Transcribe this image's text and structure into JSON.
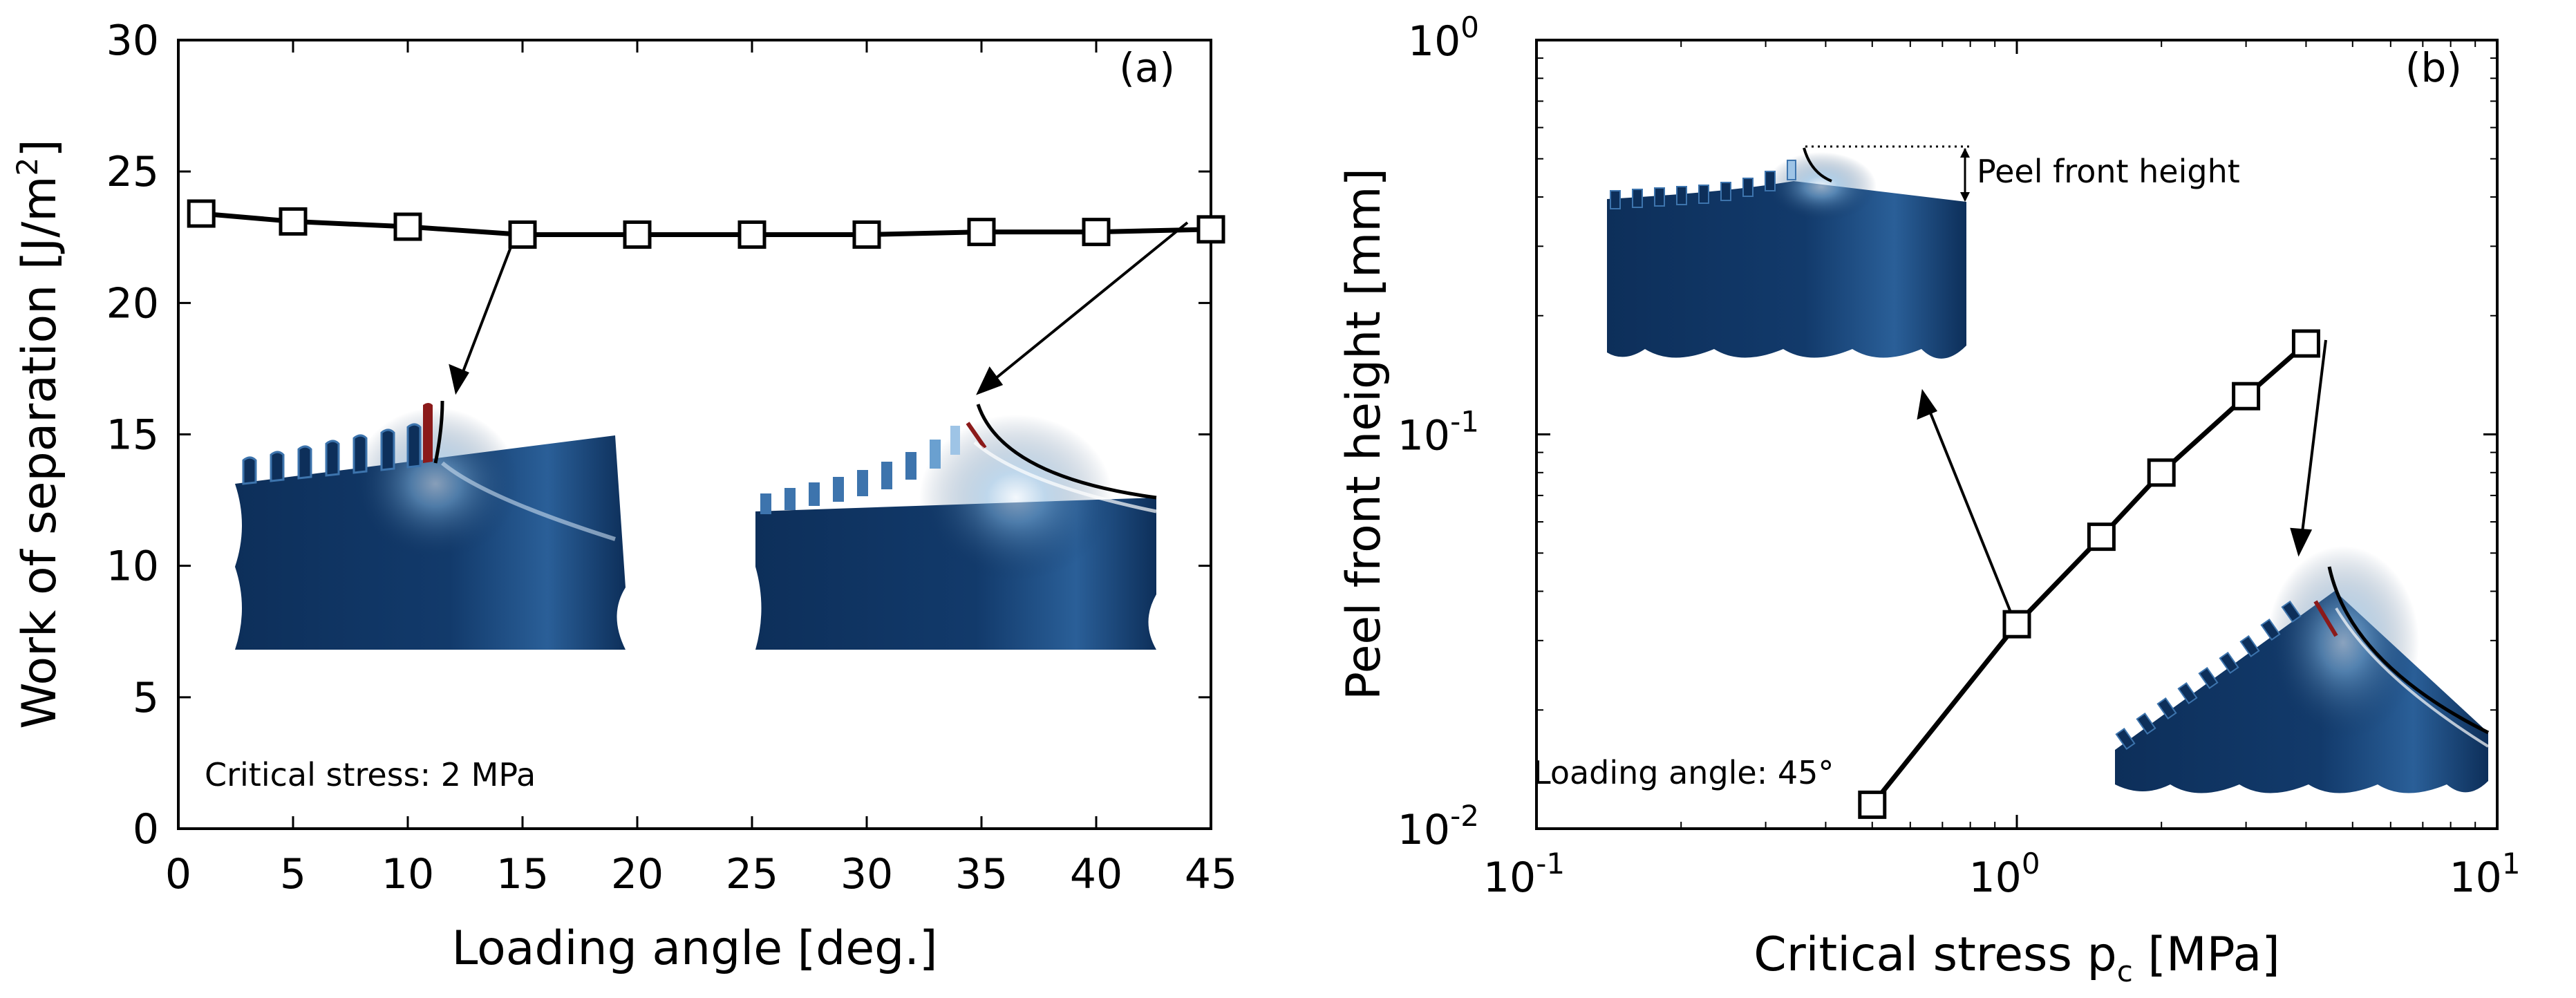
{
  "chart_data": [
    {
      "type": "line",
      "panel_label": "(a)",
      "xlabel": "Loading angle [deg.]",
      "ylabel_main": "Work of separation  [J/m",
      "ylabel_sup": "2",
      "ylabel_close": "]",
      "xlim": [
        0,
        45
      ],
      "ylim": [
        0,
        30
      ],
      "xticks": [
        0,
        5,
        10,
        15,
        20,
        25,
        30,
        35,
        40,
        45
      ],
      "yticks": [
        0,
        5,
        10,
        15,
        20,
        25,
        30
      ],
      "grid": false,
      "series": [
        {
          "name": "Work of separation",
          "marker": "square",
          "x": [
            1,
            5,
            10,
            15,
            20,
            25,
            30,
            35,
            40,
            45
          ],
          "y": [
            23.4,
            23.1,
            22.9,
            22.6,
            22.6,
            22.6,
            22.6,
            22.7,
            22.7,
            22.8
          ]
        }
      ],
      "annotation": "Critical stress: 2 MPa"
    },
    {
      "type": "line",
      "panel_label": "(b)",
      "xlabel_main": "Critical stress p",
      "xlabel_sub": "c",
      "xlabel_units": " [MPa]",
      "ylabel": "Peel front height [mm]",
      "xscale": "log",
      "yscale": "log",
      "xlim": [
        0.1,
        10
      ],
      "ylim": [
        0.01,
        1
      ],
      "xtick_base": "10",
      "xtick_exponents": [
        "-1",
        "0",
        "1"
      ],
      "ytick_base": "10",
      "ytick_exponents": [
        "-2",
        "-1",
        "0"
      ],
      "grid": false,
      "series": [
        {
          "name": "Peel front height",
          "marker": "square",
          "x": [
            0.5,
            1.0,
            1.5,
            2.0,
            3.0,
            4.0
          ],
          "y": [
            0.0115,
            0.033,
            0.055,
            0.08,
            0.125,
            0.17
          ]
        }
      ],
      "annotation": "Loading angle: 45°",
      "inset_label": "Peel front height"
    }
  ],
  "colors": {
    "line": "#000000",
    "body_dark": "#0d2f5a",
    "body_mid": "#1e4f86",
    "body_light": "#5f93c4",
    "stress_red": "#8b1a1a"
  }
}
